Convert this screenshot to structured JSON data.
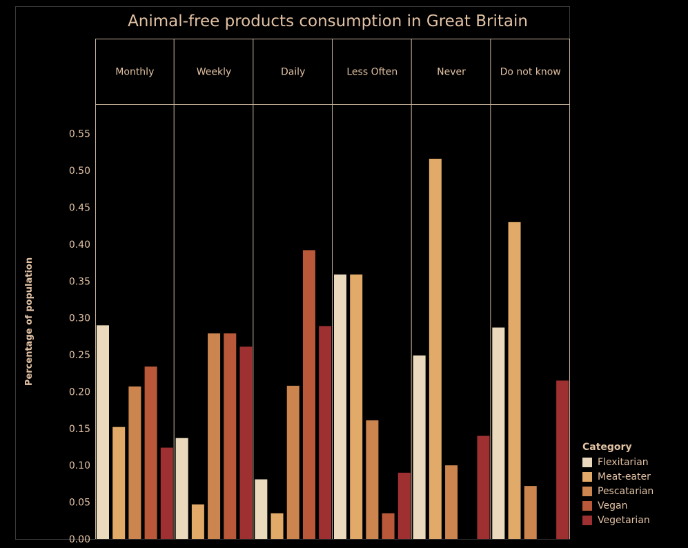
{
  "chart_data": {
    "type": "bar",
    "title": "Animal-free products consumption in Great Britain",
    "ylabel": "Percentage of population",
    "xlabel": "",
    "categories": [
      "Monthly",
      "Weekly",
      "Daily",
      "Less Often",
      "Never",
      "Do not know"
    ],
    "ylim": [
      0,
      0.59
    ],
    "yticks": [
      "0.00",
      "0.05",
      "0.10",
      "0.15",
      "0.20",
      "0.25",
      "0.30",
      "0.35",
      "0.40",
      "0.45",
      "0.50",
      "0.55"
    ],
    "grid": false,
    "legend_position": "bottom-right",
    "legend_title": "Category",
    "series": [
      {
        "name": "Flexitarian",
        "color": "#ead9bd",
        "values": [
          0.29,
          0.137,
          0.081,
          0.359,
          0.249,
          0.287
        ]
      },
      {
        "name": "Meat-eater",
        "color": "#e2aa68",
        "values": [
          0.152,
          0.047,
          0.035,
          0.359,
          0.516,
          0.43
        ]
      },
      {
        "name": "Pescatarian",
        "color": "#cd8550",
        "values": [
          0.207,
          0.279,
          0.208,
          0.161,
          0.1,
          0.072
        ]
      },
      {
        "name": "Vegan",
        "color": "#b9593a",
        "values": [
          0.234,
          0.279,
          0.392,
          0.035,
          null,
          null
        ]
      },
      {
        "name": "Vegetarian",
        "color": "#9e3032",
        "values": [
          0.124,
          0.261,
          0.289,
          0.09,
          0.14,
          0.215
        ]
      }
    ]
  },
  "legend": {
    "title": "Category",
    "items": [
      {
        "label": "Flexitarian",
        "color": "#ead9bd"
      },
      {
        "label": "Meat-eater",
        "color": "#e2aa68"
      },
      {
        "label": "Pescatarian",
        "color": "#cd8550"
      },
      {
        "label": "Vegan",
        "color": "#b9593a"
      },
      {
        "label": "Vegetarian",
        "color": "#9e3032"
      }
    ]
  },
  "colors": {
    "background": "#000000",
    "text": "#e2c2a4",
    "pane_border": "#c9b49c"
  }
}
